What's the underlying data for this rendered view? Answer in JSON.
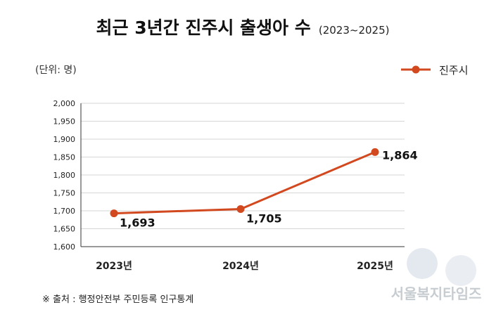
{
  "title": "최근 3년간 진주시 출생아 수",
  "title_suffix": "(2023~2025)",
  "unit": "(단위: 명)",
  "source": "※ 출처 : 행정안전부 주민등록 인구통계",
  "watermark": "서울복지타임즈",
  "chart_data": {
    "type": "line",
    "categories": [
      "2023년",
      "2024년",
      "2025년"
    ],
    "series": [
      {
        "name": "진주시",
        "values": [
          1693,
          1705,
          1864
        ],
        "labels": [
          "1,693",
          "1,705",
          "1,864"
        ],
        "color": "#d2491f"
      }
    ],
    "ylim": [
      1600,
      2000
    ],
    "yticks": [
      1600,
      1650,
      1700,
      1750,
      1800,
      1850,
      1900,
      1950,
      2000
    ],
    "ytick_labels": [
      "1,600",
      "1,650",
      "1,700",
      "1,750",
      "1,800",
      "1,850",
      "1,900",
      "1,950",
      "2,000"
    ],
    "grid": true,
    "legend": "top-right"
  }
}
